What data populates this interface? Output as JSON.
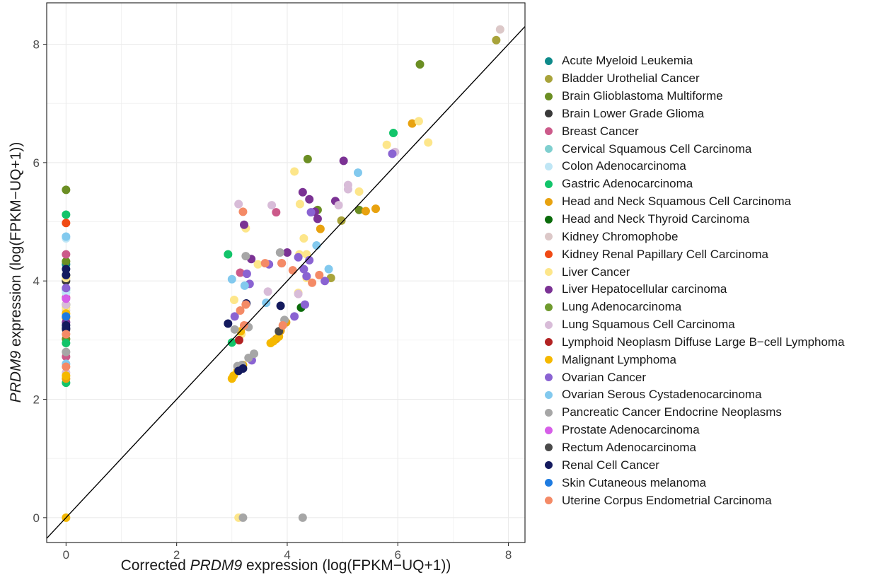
{
  "chart_data": {
    "type": "scatter",
    "xlabel": {
      "pre": "Corrected ",
      "gene": "PRDM9",
      "post": " expression (log(FPKM−UQ+1))"
    },
    "ylabel": {
      "pre": "",
      "gene": "PRDM9",
      "post": " expression (log(FPKM−UQ+1))"
    },
    "xlim": [
      -0.35,
      8.3
    ],
    "ylim": [
      -0.42,
      8.7
    ],
    "x_ticks": [
      0,
      2,
      4,
      6,
      8
    ],
    "y_ticks": [
      0,
      2,
      4,
      6,
      8
    ],
    "x_tick_labels": [
      "0",
      "2",
      "4",
      "6",
      "8"
    ],
    "y_tick_labels": [
      "0",
      "2",
      "4",
      "6",
      "8"
    ],
    "grid": true,
    "reference_line": "y = x",
    "legend_position": "right",
    "series": [
      {
        "name": "Acute Myeloid Leukemia",
        "color": "#0e8a8a",
        "points": [
          [
            0,
            4.28
          ]
        ]
      },
      {
        "name": "Bladder Urothelial Cancer",
        "color": "#a8a33a",
        "points": [
          [
            7.78,
            8.07
          ],
          [
            4.98,
            5.02
          ],
          [
            4.79,
            4.05
          ],
          [
            0,
            4.1
          ]
        ]
      },
      {
        "name": "Brain Glioblastoma Multiforme",
        "color": "#6b8e23",
        "points": [
          [
            6.4,
            7.66
          ],
          [
            4.37,
            6.06
          ],
          [
            4.55,
            5.2
          ],
          [
            5.3,
            5.2
          ],
          [
            0,
            5.54
          ],
          [
            0,
            4.33
          ],
          [
            0,
            3.02
          ]
        ]
      },
      {
        "name": "Brain Lower Grade Glioma",
        "color": "#3a3a3a",
        "points": [
          [
            0,
            4.0
          ]
        ]
      },
      {
        "name": "Breast Cancer",
        "color": "#cc5a8a",
        "points": [
          [
            3.8,
            5.16
          ],
          [
            3.15,
            4.14
          ],
          [
            3.26,
            3.24
          ],
          [
            3.9,
            4.3
          ],
          [
            0,
            4.45
          ],
          [
            0,
            3.72
          ],
          [
            0,
            2.72
          ]
        ]
      },
      {
        "name": "Cervical Squamous Cell Carcinoma",
        "color": "#7fcfcf",
        "points": [
          [
            0,
            3.85
          ]
        ]
      },
      {
        "name": "Colon Adenocarcinoma",
        "color": "#bfe6f5",
        "points": [
          [
            0,
            4.72
          ],
          [
            0,
            3.8
          ]
        ]
      },
      {
        "name": "Gastric Adenocarcinoma",
        "color": "#12c46a",
        "points": [
          [
            5.92,
            6.5
          ],
          [
            2.93,
            4.45
          ],
          [
            3.0,
            2.96
          ],
          [
            0,
            5.12
          ],
          [
            0,
            2.28
          ],
          [
            0,
            2.95
          ]
        ]
      },
      {
        "name": "Head and Neck Squamous Cell Carcinoma",
        "color": "#e8a20f",
        "points": [
          [
            6.26,
            6.66
          ],
          [
            5.6,
            5.22
          ],
          [
            5.42,
            5.18
          ],
          [
            4.6,
            4.88
          ],
          [
            3.98,
            3.3
          ],
          [
            3.88,
            3.16
          ],
          [
            3.8,
            3.02
          ],
          [
            0,
            3.38
          ],
          [
            0,
            2.35
          ]
        ]
      },
      {
        "name": "Head and Neck Thyroid Carcinoma",
        "color": "#0b6b0b",
        "points": [
          [
            4.25,
            3.55
          ]
        ]
      },
      {
        "name": "Kidney Chromophobe",
        "color": "#dcc8c8",
        "points": [
          [
            7.85,
            8.25
          ],
          [
            0,
            3.5
          ]
        ]
      },
      {
        "name": "Kidney Renal Papillary Cell Carcinoma",
        "color": "#f04a14",
        "points": [
          [
            0,
            4.98
          ]
        ]
      },
      {
        "name": "Liver Cancer",
        "color": "#fde68a",
        "points": [
          [
            6.38,
            6.7
          ],
          [
            6.55,
            6.34
          ],
          [
            5.8,
            6.3
          ],
          [
            4.13,
            5.85
          ],
          [
            5.3,
            5.51
          ],
          [
            4.23,
            5.3
          ],
          [
            3.25,
            4.89
          ],
          [
            4.3,
            4.72
          ],
          [
            4.22,
            4.45
          ],
          [
            4.35,
            4.45
          ],
          [
            3.47,
            4.28
          ],
          [
            3.04,
            3.68
          ],
          [
            4.2,
            3.8
          ],
          [
            0,
            4.05
          ],
          [
            0,
            3.55
          ],
          [
            3.12,
            0
          ],
          [
            4.35,
            4.05
          ],
          [
            3.17,
            3.1
          ]
        ]
      },
      {
        "name": "Liver Hepatocellular carcinoma",
        "color": "#7b3294",
        "points": [
          [
            5.02,
            6.03
          ],
          [
            4.28,
            5.5
          ],
          [
            4.5,
            5.17
          ],
          [
            4.4,
            5.38
          ],
          [
            4.55,
            5.05
          ],
          [
            3.22,
            4.95
          ],
          [
            3.35,
            4.37
          ],
          [
            4.87,
            5.35
          ],
          [
            4.0,
            4.48
          ],
          [
            0,
            3.3
          ]
        ]
      },
      {
        "name": "Lung Adenocarcinoma",
        "color": "#6f9a2e",
        "points": [
          [
            0,
            3.6
          ]
        ]
      },
      {
        "name": "Lung Squamous Cell Carcinoma",
        "color": "#d8bcd8",
        "points": [
          [
            5.95,
            6.18
          ],
          [
            5.1,
            5.62
          ],
          [
            5.1,
            5.55
          ],
          [
            4.93,
            5.28
          ],
          [
            3.12,
            5.3
          ],
          [
            3.72,
            5.28
          ],
          [
            3.65,
            3.82
          ],
          [
            4.2,
            3.78
          ],
          [
            0,
            3.6
          ],
          [
            0,
            2.45
          ]
        ]
      },
      {
        "name": "Lymphoid Neoplasm Diffuse Large B−cell Lymphoma",
        "color": "#b22222",
        "points": [
          [
            3.13,
            3.0
          ]
        ]
      },
      {
        "name": "Malignant Lymphoma",
        "color": "#f5b800",
        "points": [
          [
            3.16,
            3.15
          ],
          [
            3.2,
            2.58
          ],
          [
            3.1,
            2.48
          ],
          [
            3.03,
            2.4
          ],
          [
            3.0,
            2.35
          ],
          [
            3.7,
            2.95
          ],
          [
            3.75,
            2.98
          ],
          [
            3.85,
            3.06
          ],
          [
            0,
            0
          ],
          [
            0,
            3.45
          ],
          [
            0,
            2.4
          ]
        ]
      },
      {
        "name": "Ovarian Cancer",
        "color": "#8a63d2",
        "points": [
          [
            5.9,
            6.15
          ],
          [
            4.43,
            5.16
          ],
          [
            3.27,
            4.12
          ],
          [
            3.05,
            3.4
          ],
          [
            3.32,
            3.95
          ],
          [
            4.2,
            4.4
          ],
          [
            4.3,
            4.2
          ],
          [
            4.4,
            4.35
          ],
          [
            4.35,
            4.08
          ],
          [
            4.68,
            4.0
          ],
          [
            4.13,
            3.4
          ],
          [
            4.32,
            3.6
          ],
          [
            3.67,
            4.28
          ],
          [
            3.36,
            2.66
          ],
          [
            0,
            3.88
          ]
        ]
      },
      {
        "name": "Ovarian Serous Cystadenocarcinoma",
        "color": "#82c9ee",
        "points": [
          [
            5.28,
            5.83
          ],
          [
            3.0,
            4.03
          ],
          [
            3.23,
            3.92
          ],
          [
            3.62,
            3.63
          ],
          [
            4.53,
            4.6
          ],
          [
            4.75,
            4.2
          ],
          [
            0,
            4.75
          ],
          [
            0,
            2.6
          ]
        ]
      },
      {
        "name": "Pancreatic Cancer Endocrine Neoplasms",
        "color": "#a6a6a6",
        "points": [
          [
            4.28,
            0
          ],
          [
            3.2,
            0
          ],
          [
            3.25,
            4.42
          ],
          [
            3.87,
            4.48
          ],
          [
            3.05,
            3.18
          ],
          [
            3.3,
            2.7
          ],
          [
            3.4,
            2.77
          ],
          [
            3.1,
            2.56
          ],
          [
            3.18,
            2.58
          ],
          [
            3.95,
            3.34
          ],
          [
            0,
            2.8
          ],
          [
            3.3,
            3.22
          ]
        ]
      },
      {
        "name": "Prostate Adenocarcinoma",
        "color": "#d65ee8",
        "points": [
          [
            0,
            3.7
          ]
        ]
      },
      {
        "name": "Rectum Adenocarcinoma",
        "color": "#4a4a4a",
        "points": [
          [
            3.85,
            3.15
          ],
          [
            0,
            3.18
          ]
        ]
      },
      {
        "name": "Renal Cell Cancer",
        "color": "#141a5e",
        "points": [
          [
            3.26,
            3.62
          ],
          [
            2.93,
            3.28
          ],
          [
            3.88,
            3.58
          ],
          [
            3.12,
            2.48
          ],
          [
            3.2,
            2.52
          ],
          [
            0,
            4.2
          ],
          [
            0,
            3.25
          ],
          [
            0,
            4.1
          ],
          [
            0,
            3.2
          ]
        ]
      },
      {
        "name": "Skin Cutaneous melanoma",
        "color": "#1e7be0",
        "points": [
          [
            0,
            3.4
          ]
        ]
      },
      {
        "name": "Uterine Corpus Endometrial Carcinoma",
        "color": "#f48a66",
        "points": [
          [
            3.2,
            5.17
          ],
          [
            4.58,
            4.1
          ],
          [
            4.45,
            3.97
          ],
          [
            4.1,
            4.18
          ],
          [
            3.92,
            3.25
          ],
          [
            3.6,
            4.3
          ],
          [
            3.25,
            3.6
          ],
          [
            3.15,
            3.5
          ],
          [
            3.22,
            3.25
          ],
          [
            0,
            2.55
          ],
          [
            0,
            3.1
          ],
          [
            3.9,
            4.3
          ]
        ]
      }
    ]
  }
}
